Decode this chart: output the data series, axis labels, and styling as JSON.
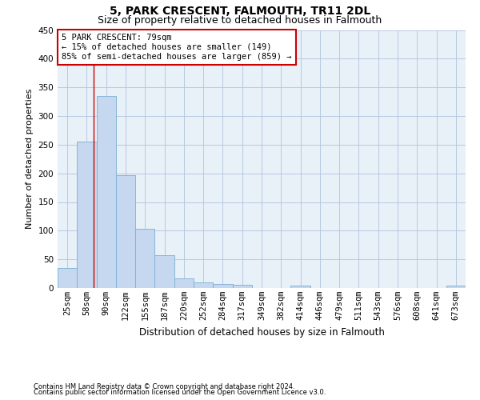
{
  "title": "5, PARK CRESCENT, FALMOUTH, TR11 2DL",
  "subtitle": "Size of property relative to detached houses in Falmouth",
  "xlabel": "Distribution of detached houses by size in Falmouth",
  "ylabel": "Number of detached properties",
  "footnote1": "Contains HM Land Registry data © Crown copyright and database right 2024.",
  "footnote2": "Contains public sector information licensed under the Open Government Licence v3.0.",
  "categories": [
    "25sqm",
    "58sqm",
    "90sqm",
    "122sqm",
    "155sqm",
    "187sqm",
    "220sqm",
    "252sqm",
    "284sqm",
    "317sqm",
    "349sqm",
    "382sqm",
    "414sqm",
    "446sqm",
    "479sqm",
    "511sqm",
    "543sqm",
    "576sqm",
    "608sqm",
    "641sqm",
    "673sqm"
  ],
  "values": [
    35,
    255,
    335,
    197,
    103,
    57,
    17,
    10,
    7,
    5,
    0,
    0,
    4,
    0,
    0,
    0,
    0,
    0,
    0,
    0,
    4
  ],
  "bar_color": "#c5d8f0",
  "bar_edge_color": "#7bafd4",
  "grid_color": "#b0c4de",
  "background_color": "#e8f0f8",
  "red_line_x": 1.35,
  "annotation_text": "5 PARK CRESCENT: 79sqm\n← 15% of detached houses are smaller (149)\n85% of semi-detached houses are larger (859) →",
  "annotation_box_color": "#ffffff",
  "annotation_box_edge": "#cc0000",
  "ylim": [
    0,
    450
  ],
  "yticks": [
    0,
    50,
    100,
    150,
    200,
    250,
    300,
    350,
    400,
    450
  ],
  "title_fontsize": 10,
  "subtitle_fontsize": 9,
  "ylabel_fontsize": 8,
  "xlabel_fontsize": 8.5,
  "tick_fontsize": 7.5,
  "ann_fontsize": 7.5,
  "footnote_fontsize": 6
}
